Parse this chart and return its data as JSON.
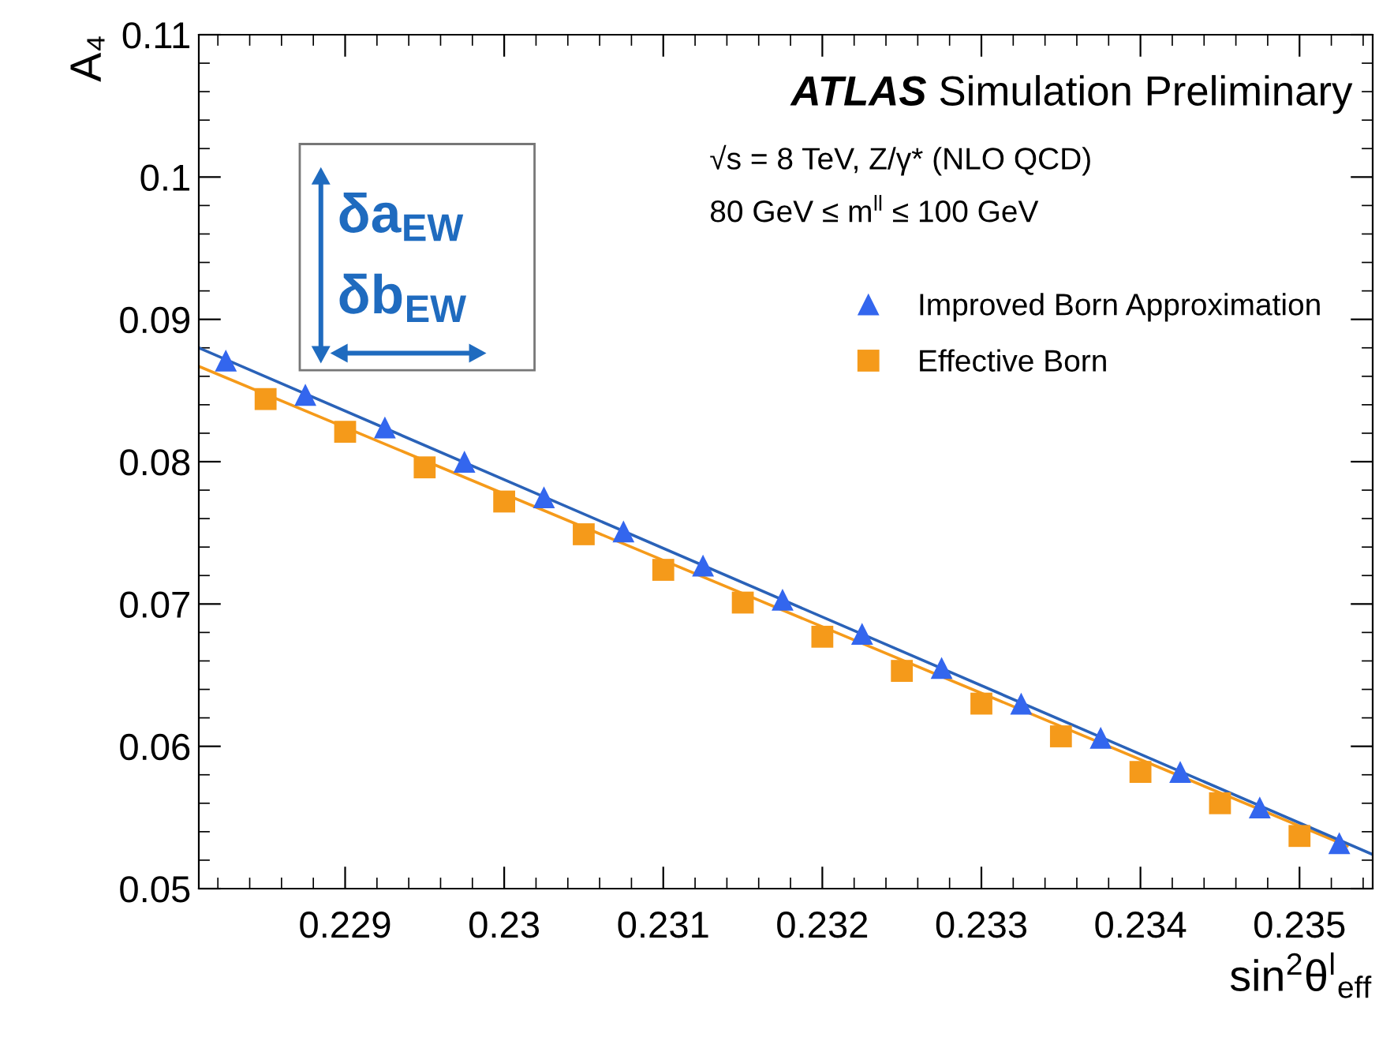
{
  "chart_data": {
    "type": "scatter",
    "xlabel": "sin$^{2}$θ$^{l}$$_{eff}$",
    "ylabel": "A₄",
    "xlim": [
      0.22808,
      0.23546
    ],
    "ylim": [
      0.05,
      0.11
    ],
    "xticks": [
      0.229,
      0.23,
      0.231,
      0.232,
      0.233,
      0.234,
      0.235
    ],
    "yticks": [
      0.05,
      0.06,
      0.07,
      0.08,
      0.09,
      0.1,
      0.11
    ],
    "grid": false,
    "legend": "top right",
    "series": [
      {
        "name": "Improved Born Approximation",
        "color": "#3366ee",
        "marker": "triangle",
        "x": [
          0.22825,
          0.22875,
          0.22925,
          0.22975,
          0.23025,
          0.23075,
          0.23125,
          0.23175,
          0.23225,
          0.23275,
          0.23325,
          0.23375,
          0.23425,
          0.23475,
          0.23525
        ],
        "values": [
          0.0871,
          0.0847,
          0.0824,
          0.08,
          0.0775,
          0.0751,
          0.0727,
          0.0703,
          0.0679,
          0.0655,
          0.063,
          0.0606,
          0.0582,
          0.0557,
          0.0532
        ]
      },
      {
        "name": "Effective Born",
        "color": "#f59a1a",
        "marker": "square",
        "x": [
          0.2285,
          0.229,
          0.2295,
          0.23,
          0.2305,
          0.231,
          0.2315,
          0.232,
          0.2325,
          0.233,
          0.2335,
          0.234,
          0.2345,
          0.235
        ],
        "values": [
          0.0844,
          0.0821,
          0.0796,
          0.0772,
          0.0749,
          0.0724,
          0.0701,
          0.0677,
          0.0653,
          0.063,
          0.0607,
          0.0582,
          0.056,
          0.0537
        ]
      },
      {
        "type": "line",
        "color": "#f59a1a",
        "marker": "none",
        "x": [
          0.22808,
          0.2353
        ],
        "values": [
          0.0867,
          0.053
        ]
      },
      {
        "type": "line",
        "color": "#2a62b8",
        "marker": "none",
        "x": [
          0.22808,
          0.23546
        ],
        "values": [
          0.088,
          0.0524
        ]
      }
    ],
    "annotations": [
      "ATLAS",
      "Simulation Preliminary",
      "√s = 8 TeV, Z/γ* (NLO QCD)",
      "80 GeV ≤ m$^{ll}$ ≤ 100 GeV",
      "δa$_{EW}$",
      "δb$_{EW}$"
    ]
  }
}
